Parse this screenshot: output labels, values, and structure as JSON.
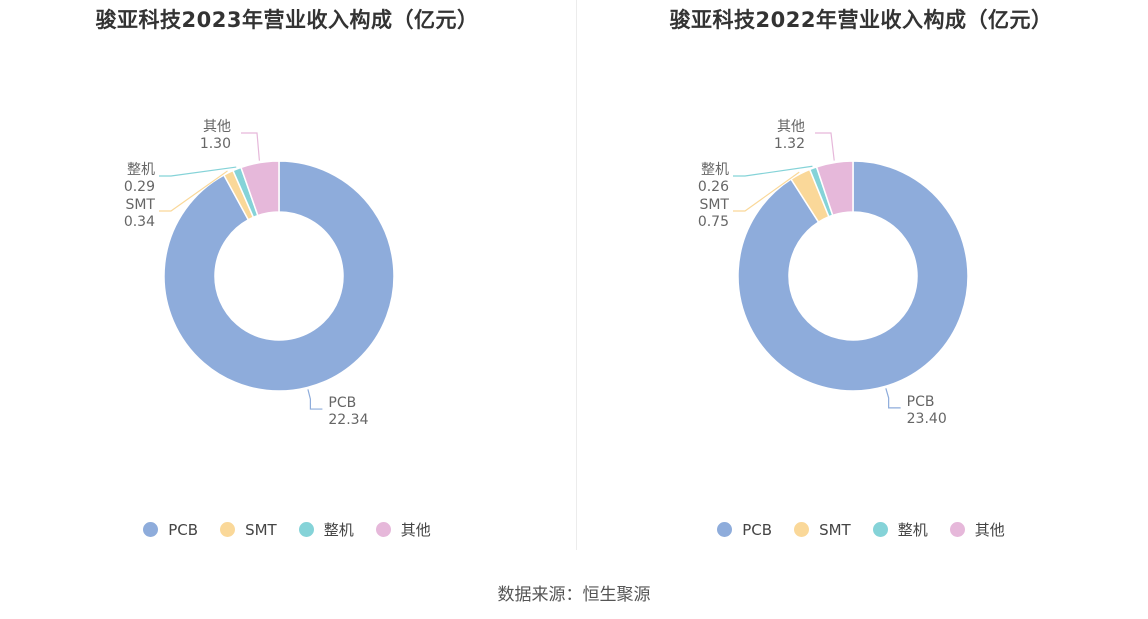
{
  "source_text": "数据来源：恒生聚源",
  "colors": {
    "PCB": "#8eacdb",
    "SMT": "#fad899",
    "整机": "#85d3d8",
    "其他": "#e6b8da"
  },
  "chart_data": [
    {
      "type": "pie",
      "title": "骏亚科技2023年营业收入构成（亿元）",
      "donut": true,
      "legend_position": "bottom",
      "categories": [
        "PCB",
        "SMT",
        "整机",
        "其他"
      ],
      "values": [
        22.34,
        0.34,
        0.29,
        1.3
      ],
      "value_labels": [
        "22.34",
        "0.34",
        "0.29",
        "1.30"
      ]
    },
    {
      "type": "pie",
      "title": "骏亚科技2022年营业收入构成（亿元）",
      "donut": true,
      "legend_position": "bottom",
      "categories": [
        "PCB",
        "SMT",
        "整机",
        "其他"
      ],
      "values": [
        23.4,
        0.75,
        0.26,
        1.32
      ],
      "value_labels": [
        "23.40",
        "0.75",
        "0.26",
        "1.32"
      ]
    }
  ]
}
